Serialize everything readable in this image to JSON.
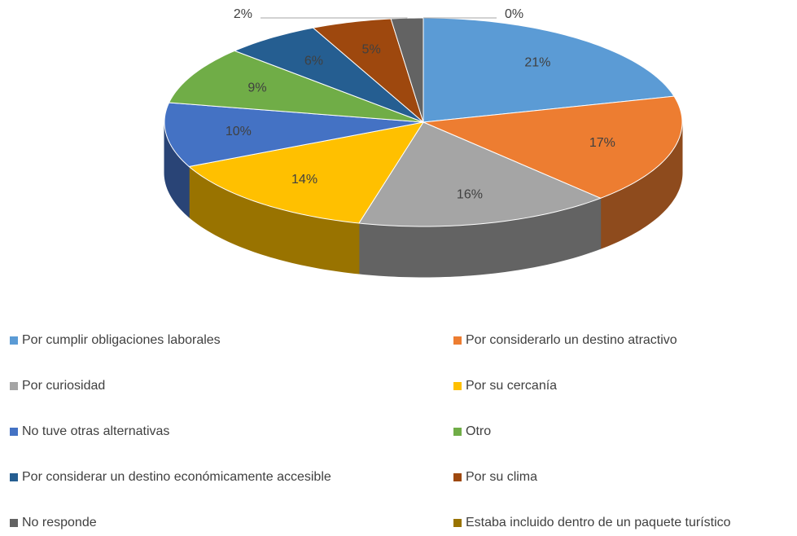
{
  "chart_data": {
    "type": "pie",
    "categories": [
      "Por cumplir obligaciones laborales",
      "Por considerarlo un destino atractivo",
      "Por curiosidad",
      "Por su cercanía",
      "No tuve otras alternativas",
      "Otro",
      "Por considerar un destino económicamente accesible",
      "Por su clima",
      "No responde",
      "Estaba incluido dentro de un paquete turístico"
    ],
    "values": [
      21,
      17,
      16,
      14,
      10,
      9,
      6,
      5,
      2,
      0
    ],
    "value_labels": [
      "21%",
      "17%",
      "16%",
      "14%",
      "10%",
      "9%",
      "6%",
      "5%",
      "2%",
      "0%"
    ],
    "colors": [
      "#5b9bd5",
      "#ed7d31",
      "#a5a5a5",
      "#ffc000",
      "#4472c4",
      "#70ad47",
      "#255e91",
      "#9e480e",
      "#636363",
      "#997300"
    ],
    "legend": "bottom"
  }
}
